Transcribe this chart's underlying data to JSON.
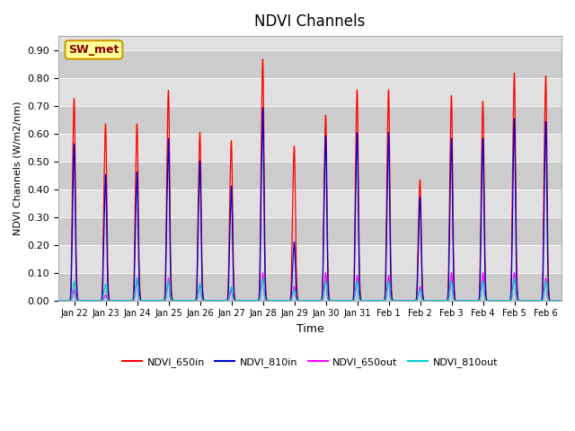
{
  "title": "NDVI Channels",
  "xlabel": "Time",
  "ylabel": "NDVI Channels (W/m2/nm)",
  "ylim": [
    0.0,
    0.95
  ],
  "yticks": [
    0.0,
    0.1,
    0.2,
    0.3,
    0.4,
    0.5,
    0.6,
    0.7,
    0.8,
    0.9
  ],
  "xtick_labels": [
    "Jan 22",
    "Jan 23",
    "Jan 24",
    "Jan 25",
    "Jan 26",
    "Jan 27",
    "Jan 28",
    "Jan 29",
    "Jan 30",
    "Jan 31",
    "Feb 1",
    "Feb 2",
    "Feb 3",
    "Feb 4",
    "Feb 5",
    "Feb 6"
  ],
  "plot_bg_color": "#e0e0e0",
  "line_colors": {
    "650in": "#ff0000",
    "810in": "#0000cc",
    "650out": "#ff00ff",
    "810out": "#00cccc"
  },
  "legend_labels": [
    "NDVI_650in",
    "NDVI_810in",
    "NDVI_650out",
    "NDVI_810out"
  ],
  "annotation_text": "SW_met",
  "annotation_bg": "#ffff99",
  "annotation_border": "#cc9900",
  "annotation_color": "#880000",
  "peak_650in": [
    0.72,
    0.63,
    0.63,
    0.75,
    0.6,
    0.57,
    0.86,
    0.55,
    0.66,
    0.75,
    0.75,
    0.43,
    0.73,
    0.71,
    0.81,
    0.8
  ],
  "peak_810in": [
    0.56,
    0.45,
    0.46,
    0.58,
    0.5,
    0.41,
    0.69,
    0.21,
    0.59,
    0.6,
    0.6,
    0.37,
    0.58,
    0.58,
    0.65,
    0.64
  ],
  "peak_650out": [
    0.04,
    0.02,
    0.08,
    0.08,
    0.06,
    0.04,
    0.1,
    0.05,
    0.1,
    0.09,
    0.09,
    0.05,
    0.1,
    0.1,
    0.1,
    0.08
  ],
  "peak_810out": [
    0.07,
    0.06,
    0.08,
    0.07,
    0.06,
    0.05,
    0.08,
    0.04,
    0.07,
    0.07,
    0.07,
    0.04,
    0.07,
    0.07,
    0.08,
    0.07
  ]
}
